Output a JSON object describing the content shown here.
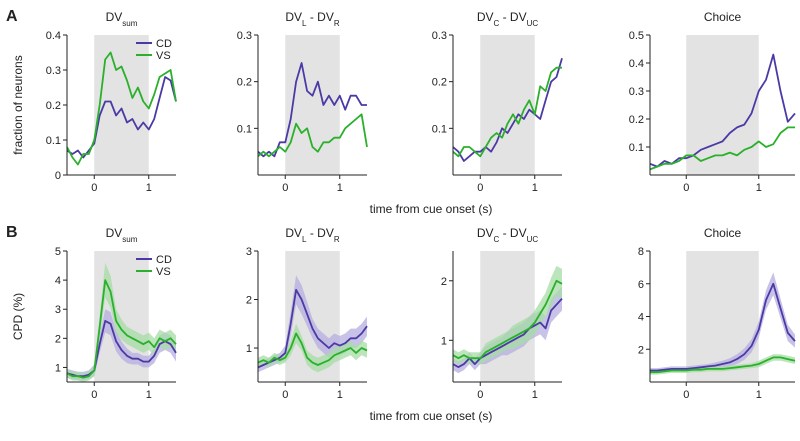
{
  "figure": {
    "xlabel": "time from cue onset (s)",
    "shade_window": [
      0,
      1
    ],
    "colors": {
      "CD": "#4b3aa6",
      "VS": "#2ab02a",
      "shade": "#e3e3e3",
      "band_CD": "#b7aee0",
      "band_VS": "#a6dca6"
    }
  },
  "rows": [
    {
      "label": "A",
      "ylabel": "fraction of neurons"
    },
    {
      "label": "B",
      "ylabel": "CPD (%)"
    }
  ],
  "chart_data": [
    {
      "type": "line",
      "row": 0,
      "col": 0,
      "title": {
        "main": "DV",
        "sub": "sum"
      },
      "legend": [
        "CD",
        "VS"
      ],
      "xlim": [
        -0.5,
        1.5
      ],
      "ylim": [
        0,
        0.4
      ],
      "xticks": [
        0,
        1
      ],
      "xtick_labels": [
        "0",
        "1"
      ],
      "yticks": [
        0,
        0.1,
        0.2,
        0.3,
        0.4
      ],
      "ytick_labels": [
        "0",
        "0.1",
        "0.2",
        "0.3",
        "0.4"
      ],
      "x": [
        -0.5,
        -0.4,
        -0.3,
        -0.2,
        -0.1,
        0,
        0.1,
        0.2,
        0.3,
        0.4,
        0.5,
        0.6,
        0.7,
        0.8,
        0.9,
        1.0,
        1.1,
        1.2,
        1.3,
        1.4,
        1.5
      ],
      "series": [
        {
          "name": "CD",
          "values": [
            0.07,
            0.06,
            0.07,
            0.05,
            0.07,
            0.09,
            0.17,
            0.21,
            0.21,
            0.17,
            0.19,
            0.15,
            0.16,
            0.13,
            0.15,
            0.13,
            0.16,
            0.22,
            0.28,
            0.27,
            0.21
          ]
        },
        {
          "name": "VS",
          "values": [
            0.08,
            0.05,
            0.03,
            0.06,
            0.06,
            0.1,
            0.2,
            0.33,
            0.35,
            0.3,
            0.31,
            0.27,
            0.22,
            0.25,
            0.21,
            0.19,
            0.23,
            0.28,
            0.29,
            0.3,
            0.21
          ]
        }
      ]
    },
    {
      "type": "line",
      "row": 0,
      "col": 1,
      "title": {
        "main": "DV",
        "sub": "L",
        "mid": " - DV",
        "sub2": "R"
      },
      "xlim": [
        -0.5,
        1.5
      ],
      "ylim": [
        0,
        0.3
      ],
      "xticks": [
        0,
        1
      ],
      "xtick_labels": [
        "0",
        "1"
      ],
      "yticks": [
        0.1,
        0.2,
        0.3
      ],
      "ytick_labels": [
        "0.1",
        "0.2",
        "0.3"
      ],
      "x": [
        -0.5,
        -0.4,
        -0.3,
        -0.2,
        -0.1,
        0,
        0.1,
        0.2,
        0.3,
        0.4,
        0.5,
        0.6,
        0.7,
        0.8,
        0.9,
        1.0,
        1.1,
        1.2,
        1.3,
        1.4,
        1.5
      ],
      "series": [
        {
          "name": "CD",
          "values": [
            0.05,
            0.04,
            0.05,
            0.04,
            0.07,
            0.07,
            0.12,
            0.2,
            0.24,
            0.18,
            0.17,
            0.2,
            0.15,
            0.17,
            0.15,
            0.17,
            0.14,
            0.17,
            0.17,
            0.15,
            0.15
          ]
        },
        {
          "name": "VS",
          "values": [
            0.04,
            0.05,
            0.04,
            0.05,
            0.06,
            0.05,
            0.07,
            0.11,
            0.09,
            0.1,
            0.06,
            0.05,
            0.07,
            0.07,
            0.08,
            0.08,
            0.1,
            0.11,
            0.12,
            0.13,
            0.06
          ]
        }
      ]
    },
    {
      "type": "line",
      "row": 0,
      "col": 2,
      "title": {
        "main": "DV",
        "sub": "C",
        "mid": " - DV",
        "sub2": "UC"
      },
      "xlim": [
        -0.5,
        1.5
      ],
      "ylim": [
        0,
        0.3
      ],
      "xticks": [
        0,
        1
      ],
      "xtick_labels": [
        "0",
        "1"
      ],
      "yticks": [
        0.1,
        0.2,
        0.3
      ],
      "ytick_labels": [
        "0.1",
        "0.2",
        "0.3"
      ],
      "x": [
        -0.5,
        -0.4,
        -0.3,
        -0.2,
        -0.1,
        0,
        0.1,
        0.2,
        0.3,
        0.4,
        0.5,
        0.6,
        0.7,
        0.8,
        0.9,
        1.0,
        1.1,
        1.2,
        1.3,
        1.4,
        1.5
      ],
      "series": [
        {
          "name": "CD",
          "values": [
            0.06,
            0.05,
            0.03,
            0.04,
            0.05,
            0.05,
            0.06,
            0.05,
            0.07,
            0.1,
            0.09,
            0.11,
            0.13,
            0.12,
            0.14,
            0.13,
            0.12,
            0.16,
            0.2,
            0.21,
            0.25
          ]
        },
        {
          "name": "VS",
          "values": [
            0.05,
            0.04,
            0.06,
            0.06,
            0.05,
            0.04,
            0.06,
            0.08,
            0.09,
            0.08,
            0.11,
            0.13,
            0.11,
            0.14,
            0.16,
            0.13,
            0.19,
            0.18,
            0.22,
            0.23,
            0.23
          ]
        }
      ]
    },
    {
      "type": "line",
      "row": 0,
      "col": 3,
      "title": {
        "main": "Choice"
      },
      "xlim": [
        -0.5,
        1.5
      ],
      "ylim": [
        0,
        0.5
      ],
      "xticks": [
        0,
        1
      ],
      "xtick_labels": [
        "0",
        "1"
      ],
      "yticks": [
        0.1,
        0.2,
        0.3,
        0.4,
        0.5
      ],
      "ytick_labels": [
        "0.1",
        "0.2",
        "0.3",
        "0.4",
        "0.5"
      ],
      "x": [
        -0.5,
        -0.4,
        -0.3,
        -0.2,
        -0.1,
        0,
        0.1,
        0.2,
        0.3,
        0.4,
        0.5,
        0.6,
        0.7,
        0.8,
        0.9,
        1.0,
        1.1,
        1.2,
        1.3,
        1.4,
        1.5
      ],
      "series": [
        {
          "name": "CD",
          "values": [
            0.04,
            0.03,
            0.05,
            0.04,
            0.06,
            0.06,
            0.07,
            0.09,
            0.1,
            0.11,
            0.12,
            0.15,
            0.17,
            0.18,
            0.22,
            0.3,
            0.34,
            0.43,
            0.3,
            0.19,
            0.22
          ]
        },
        {
          "name": "VS",
          "values": [
            0.02,
            0.03,
            0.04,
            0.04,
            0.05,
            0.07,
            0.07,
            0.05,
            0.06,
            0.07,
            0.07,
            0.08,
            0.07,
            0.09,
            0.1,
            0.12,
            0.1,
            0.11,
            0.15,
            0.17,
            0.17
          ]
        }
      ]
    },
    {
      "type": "line",
      "row": 1,
      "col": 0,
      "title": {
        "main": "DV",
        "sub": "sum"
      },
      "legend": [
        "CD",
        "VS"
      ],
      "xlim": [
        -0.5,
        1.5
      ],
      "ylim": [
        0.5,
        5
      ],
      "xticks": [
        0,
        1
      ],
      "xtick_labels": [
        "0",
        "1"
      ],
      "yticks": [
        1,
        2,
        3,
        4,
        5
      ],
      "ytick_labels": [
        "1",
        "2",
        "3",
        "4",
        "5"
      ],
      "x": [
        -0.5,
        -0.4,
        -0.3,
        -0.2,
        -0.1,
        0,
        0.1,
        0.2,
        0.3,
        0.4,
        0.5,
        0.6,
        0.7,
        0.8,
        0.9,
        1.0,
        1.1,
        1.2,
        1.3,
        1.4,
        1.5
      ],
      "series": [
        {
          "name": "CD",
          "values": [
            0.8,
            0.75,
            0.7,
            0.7,
            0.75,
            0.9,
            1.8,
            2.6,
            2.5,
            1.9,
            1.6,
            1.4,
            1.3,
            1.3,
            1.2,
            1.2,
            1.4,
            1.8,
            1.9,
            1.8,
            1.5
          ],
          "band": [
            0.15,
            0.15,
            0.15,
            0.15,
            0.15,
            0.2,
            0.3,
            0.4,
            0.4,
            0.35,
            0.3,
            0.25,
            0.2,
            0.2,
            0.2,
            0.2,
            0.25,
            0.3,
            0.3,
            0.3,
            0.3
          ]
        },
        {
          "name": "VS",
          "values": [
            0.8,
            0.7,
            0.7,
            0.65,
            0.7,
            0.9,
            2.4,
            4.0,
            3.6,
            2.6,
            2.3,
            2.1,
            2.0,
            1.9,
            1.8,
            1.9,
            1.7,
            2.0,
            1.9,
            2.0,
            1.8
          ],
          "band": [
            0.15,
            0.15,
            0.15,
            0.15,
            0.15,
            0.2,
            0.4,
            0.6,
            0.55,
            0.4,
            0.35,
            0.3,
            0.3,
            0.3,
            0.3,
            0.3,
            0.3,
            0.3,
            0.3,
            0.3,
            0.3
          ]
        }
      ]
    },
    {
      "type": "line",
      "row": 1,
      "col": 1,
      "title": {
        "main": "DV",
        "sub": "L",
        "mid": " - DV",
        "sub2": "R"
      },
      "xlim": [
        -0.5,
        1.5
      ],
      "ylim": [
        0.3,
        3
      ],
      "xticks": [
        0,
        1
      ],
      "xtick_labels": [
        "0",
        "1"
      ],
      "yticks": [
        1,
        2,
        3
      ],
      "ytick_labels": [
        "1",
        "2",
        "3"
      ],
      "x": [
        -0.5,
        -0.4,
        -0.3,
        -0.2,
        -0.1,
        0,
        0.1,
        0.2,
        0.3,
        0.4,
        0.5,
        0.6,
        0.7,
        0.8,
        0.9,
        1.0,
        1.1,
        1.2,
        1.3,
        1.4,
        1.5
      ],
      "series": [
        {
          "name": "CD",
          "values": [
            0.6,
            0.65,
            0.7,
            0.75,
            0.8,
            0.9,
            1.5,
            2.2,
            2.0,
            1.7,
            1.4,
            1.2,
            1.1,
            1.0,
            1.1,
            1.05,
            1.1,
            1.2,
            1.2,
            1.3,
            1.45
          ],
          "band": [
            0.1,
            0.1,
            0.1,
            0.1,
            0.1,
            0.15,
            0.25,
            0.3,
            0.3,
            0.25,
            0.2,
            0.2,
            0.2,
            0.2,
            0.2,
            0.2,
            0.2,
            0.2,
            0.2,
            0.2,
            0.2
          ]
        },
        {
          "name": "VS",
          "values": [
            0.7,
            0.75,
            0.7,
            0.8,
            0.75,
            0.8,
            1.0,
            1.3,
            1.1,
            0.8,
            0.7,
            0.65,
            0.7,
            0.75,
            0.85,
            0.9,
            0.95,
            1.0,
            0.9,
            1.0,
            0.95
          ],
          "band": [
            0.1,
            0.1,
            0.1,
            0.1,
            0.1,
            0.1,
            0.15,
            0.2,
            0.15,
            0.15,
            0.15,
            0.15,
            0.15,
            0.15,
            0.15,
            0.15,
            0.15,
            0.15,
            0.15,
            0.15,
            0.15
          ]
        }
      ]
    },
    {
      "type": "line",
      "row": 1,
      "col": 2,
      "title": {
        "main": "DV",
        "sub": "C",
        "mid": " - DV",
        "sub2": "UC"
      },
      "xlim": [
        -0.5,
        1.5
      ],
      "ylim": [
        0.3,
        2.5
      ],
      "xticks": [
        0,
        1
      ],
      "xtick_labels": [
        "0",
        "1"
      ],
      "yticks": [
        1,
        2
      ],
      "ytick_labels": [
        "1",
        "2"
      ],
      "x": [
        -0.5,
        -0.4,
        -0.3,
        -0.2,
        -0.1,
        0,
        0.1,
        0.2,
        0.3,
        0.4,
        0.5,
        0.6,
        0.7,
        0.8,
        0.9,
        1.0,
        1.1,
        1.2,
        1.3,
        1.4,
        1.5
      ],
      "series": [
        {
          "name": "CD",
          "values": [
            0.6,
            0.55,
            0.6,
            0.7,
            0.6,
            0.7,
            0.75,
            0.8,
            0.85,
            0.9,
            0.95,
            1.0,
            1.05,
            1.1,
            1.2,
            1.25,
            1.3,
            1.2,
            1.5,
            1.6,
            1.7
          ],
          "band": [
            0.1,
            0.1,
            0.1,
            0.1,
            0.1,
            0.1,
            0.15,
            0.15,
            0.15,
            0.15,
            0.2,
            0.2,
            0.2,
            0.2,
            0.2,
            0.2,
            0.2,
            0.2,
            0.2,
            0.2,
            0.2
          ]
        },
        {
          "name": "VS",
          "values": [
            0.75,
            0.7,
            0.75,
            0.7,
            0.7,
            0.7,
            0.8,
            0.85,
            0.9,
            0.95,
            1.0,
            1.05,
            1.1,
            1.15,
            1.2,
            1.3,
            1.45,
            1.6,
            1.8,
            2.0,
            1.95
          ],
          "band": [
            0.1,
            0.1,
            0.1,
            0.1,
            0.1,
            0.1,
            0.15,
            0.15,
            0.15,
            0.15,
            0.15,
            0.2,
            0.2,
            0.2,
            0.2,
            0.2,
            0.2,
            0.2,
            0.25,
            0.25,
            0.25
          ]
        }
      ]
    },
    {
      "type": "line",
      "row": 1,
      "col": 3,
      "title": {
        "main": "Choice"
      },
      "xlim": [
        -0.5,
        1.5
      ],
      "ylim": [
        0,
        8
      ],
      "xticks": [
        0,
        1
      ],
      "xtick_labels": [
        "0",
        "1"
      ],
      "yticks": [
        2,
        4,
        6,
        8
      ],
      "ytick_labels": [
        "2",
        "4",
        "6",
        "8"
      ],
      "x": [
        -0.5,
        -0.4,
        -0.3,
        -0.2,
        -0.1,
        0,
        0.1,
        0.2,
        0.3,
        0.4,
        0.5,
        0.6,
        0.7,
        0.8,
        0.9,
        1.0,
        1.1,
        1.2,
        1.3,
        1.4,
        1.5
      ],
      "series": [
        {
          "name": "CD",
          "values": [
            0.7,
            0.7,
            0.75,
            0.8,
            0.8,
            0.8,
            0.85,
            0.9,
            0.95,
            1.0,
            1.1,
            1.2,
            1.4,
            1.7,
            2.2,
            3.2,
            5.0,
            6.0,
            4.5,
            3.0,
            2.5
          ],
          "band": [
            0.15,
            0.15,
            0.15,
            0.15,
            0.15,
            0.15,
            0.15,
            0.15,
            0.15,
            0.2,
            0.2,
            0.25,
            0.3,
            0.35,
            0.4,
            0.5,
            0.6,
            0.7,
            0.6,
            0.5,
            0.4
          ]
        },
        {
          "name": "VS",
          "values": [
            0.6,
            0.6,
            0.65,
            0.7,
            0.7,
            0.7,
            0.75,
            0.75,
            0.8,
            0.8,
            0.8,
            0.85,
            0.9,
            0.95,
            1.0,
            1.1,
            1.3,
            1.5,
            1.5,
            1.4,
            1.3
          ],
          "band": [
            0.15,
            0.15,
            0.15,
            0.15,
            0.15,
            0.15,
            0.15,
            0.15,
            0.15,
            0.15,
            0.15,
            0.15,
            0.15,
            0.15,
            0.15,
            0.2,
            0.2,
            0.2,
            0.2,
            0.2,
            0.2
          ]
        }
      ]
    }
  ]
}
